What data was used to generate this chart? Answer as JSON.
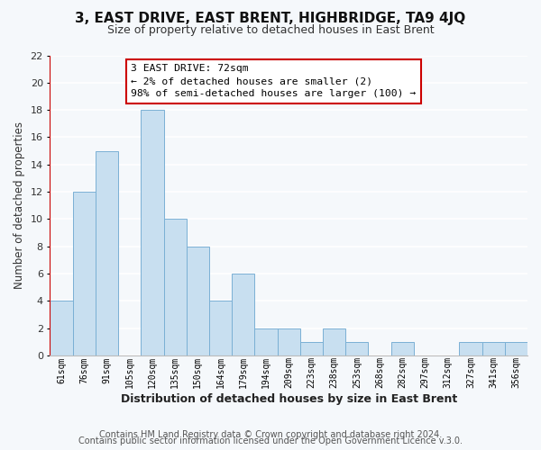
{
  "title": "3, EAST DRIVE, EAST BRENT, HIGHBRIDGE, TA9 4JQ",
  "subtitle": "Size of property relative to detached houses in East Brent",
  "xlabel": "Distribution of detached houses by size in East Brent",
  "ylabel": "Number of detached properties",
  "bar_color": "#c8dff0",
  "bar_edge_color": "#7ab0d4",
  "background_color": "#f5f8fb",
  "categories": [
    "61sqm",
    "76sqm",
    "91sqm",
    "105sqm",
    "120sqm",
    "135sqm",
    "150sqm",
    "164sqm",
    "179sqm",
    "194sqm",
    "209sqm",
    "223sqm",
    "238sqm",
    "253sqm",
    "268sqm",
    "282sqm",
    "297sqm",
    "312sqm",
    "327sqm",
    "341sqm",
    "356sqm"
  ],
  "values": [
    4,
    12,
    15,
    0,
    18,
    10,
    8,
    4,
    6,
    2,
    2,
    1,
    2,
    1,
    0,
    1,
    0,
    0,
    1,
    1,
    1
  ],
  "ylim": [
    0,
    22
  ],
  "yticks": [
    0,
    2,
    4,
    6,
    8,
    10,
    12,
    14,
    16,
    18,
    20,
    22
  ],
  "annotation_title": "3 EAST DRIVE: 72sqm",
  "annotation_line1": "← 2% of detached houses are smaller (2)",
  "annotation_line2": "98% of semi-detached houses are larger (100) →",
  "annotation_box_edge": "#cc0000",
  "vline_color": "#cc0000",
  "footer1": "Contains HM Land Registry data © Crown copyright and database right 2024.",
  "footer2": "Contains public sector information licensed under the Open Government Licence v.3.0."
}
